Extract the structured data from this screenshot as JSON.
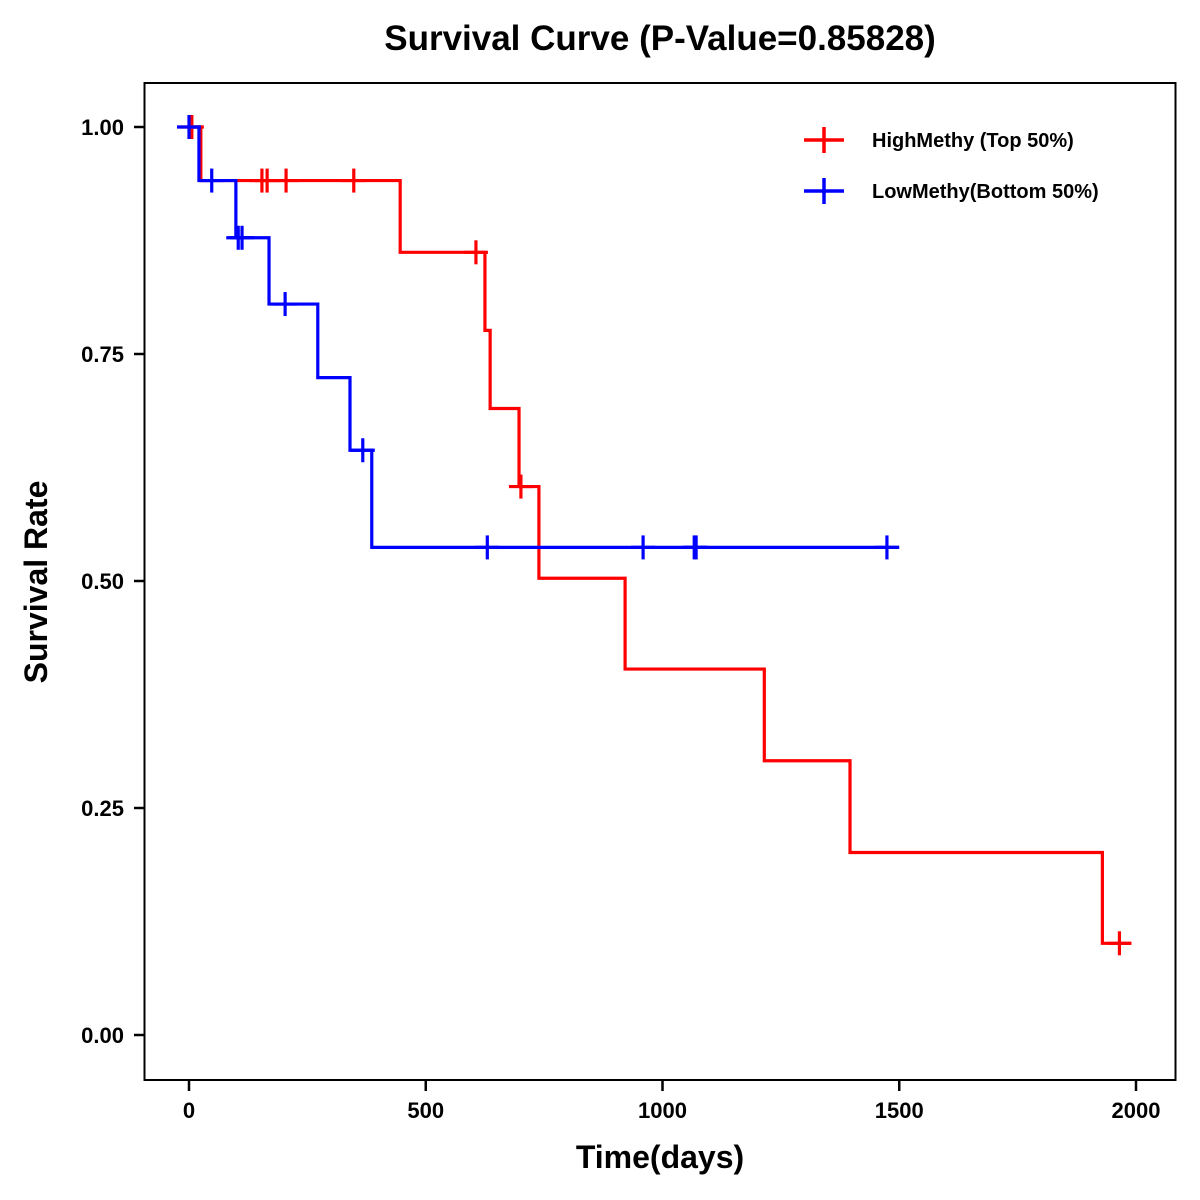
{
  "chart_data": {
    "type": "line",
    "subtype": "kaplan-meier step",
    "title": "Survival Curve (P-Value=0.85828)",
    "xlabel": "Time(days)",
    "ylabel": "Survival Rate",
    "xlim": [
      -100,
      2100
    ],
    "ylim": [
      -0.05,
      1.05
    ],
    "xticks": [
      0,
      500,
      1000,
      1500,
      2000
    ],
    "xtick_labels": [
      "0",
      "500",
      "1000",
      "1500",
      "2000"
    ],
    "yticks": [
      0,
      0.25,
      0.5,
      0.75,
      1.0
    ],
    "ytick_labels": [
      "0.00",
      "0.25",
      "0.50",
      "0.75",
      "1.00"
    ],
    "grid": false,
    "legend_position": "top-right",
    "series": [
      {
        "name": "HighMethy (Top 50%)",
        "color": "#ff0000",
        "steps": [
          [
            0,
            1.0
          ],
          [
            25,
            0.941
          ],
          [
            446,
            0.862
          ],
          [
            625,
            0.776
          ],
          [
            636,
            0.69
          ],
          [
            697,
            0.604
          ],
          [
            739,
            0.503
          ],
          [
            921,
            0.403
          ],
          [
            1215,
            0.302
          ],
          [
            1396,
            0.201
          ],
          [
            1929,
            0.101
          ]
        ],
        "end_time": 1990,
        "censored": [
          6,
          154,
          165,
          205,
          348,
          606,
          701,
          1965
        ]
      },
      {
        "name": "LowMethy(Bottom 50%)",
        "color": "#0000ff",
        "steps": [
          [
            0,
            1.0
          ],
          [
            21,
            0.941
          ],
          [
            99,
            0.878
          ],
          [
            169,
            0.805
          ],
          [
            272,
            0.724
          ],
          [
            340,
            0.644
          ],
          [
            386,
            0.537
          ]
        ],
        "end_time": 1500,
        "censored": [
          0,
          48,
          104,
          112,
          203,
          367,
          630,
          959,
          1067,
          1071,
          1474
        ]
      }
    ]
  }
}
